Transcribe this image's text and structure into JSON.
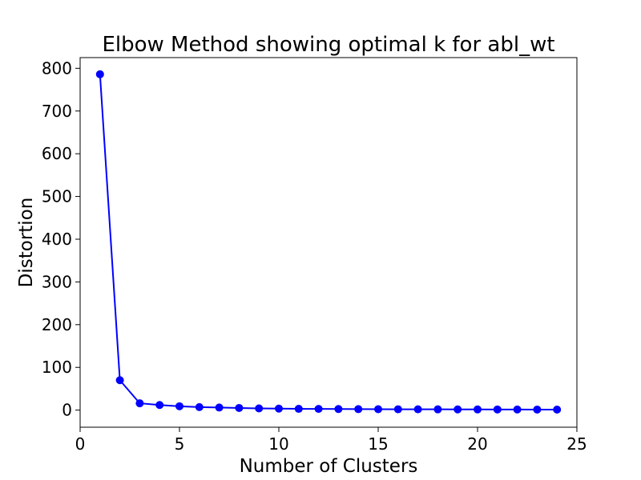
{
  "chart_data": {
    "type": "line",
    "title": "Elbow Method showing optimal k for abl_wt",
    "xlabel": "Number of Clusters",
    "ylabel": "Distortion",
    "xlim": [
      0,
      25
    ],
    "ylim": [
      -40,
      825
    ],
    "xticks": [
      0,
      5,
      10,
      15,
      20,
      25
    ],
    "yticks": [
      0,
      100,
      200,
      300,
      400,
      500,
      600,
      700,
      800
    ],
    "grid": false,
    "marker": "circle",
    "series": [
      {
        "color": "#0000ff",
        "x": [
          1,
          2,
          3,
          4,
          5,
          6,
          7,
          8,
          9,
          10,
          11,
          12,
          13,
          14,
          15,
          16,
          17,
          18,
          19,
          20,
          21,
          22,
          23,
          24
        ],
        "values": [
          786,
          70,
          16,
          12,
          9,
          7,
          6,
          5,
          4,
          3.5,
          3,
          2.8,
          2.5,
          2.3,
          2.1,
          2,
          1.9,
          1.8,
          1.7,
          1.6,
          1.5,
          1.4,
          1.3,
          1.2
        ]
      }
    ]
  }
}
